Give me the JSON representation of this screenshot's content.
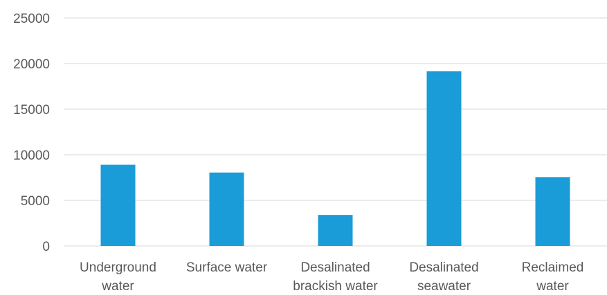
{
  "chart_data": {
    "type": "bar",
    "title": "",
    "xlabel": "",
    "ylabel": "",
    "categories": [
      [
        "Underground",
        "water"
      ],
      [
        "Surface water"
      ],
      [
        "Desalinated",
        "brackish water"
      ],
      [
        "Desalinated",
        "seawater"
      ],
      [
        "Reclaimed",
        "water"
      ]
    ],
    "values": [
      8900,
      8050,
      3400,
      19150,
      7550
    ],
    "ylim": [
      0,
      25000
    ],
    "yticks": [
      "0",
      "5000",
      "10000",
      "15000",
      "20000",
      "25000"
    ],
    "grid": true,
    "legend": "none",
    "bar_color": "#1a9cd8"
  }
}
